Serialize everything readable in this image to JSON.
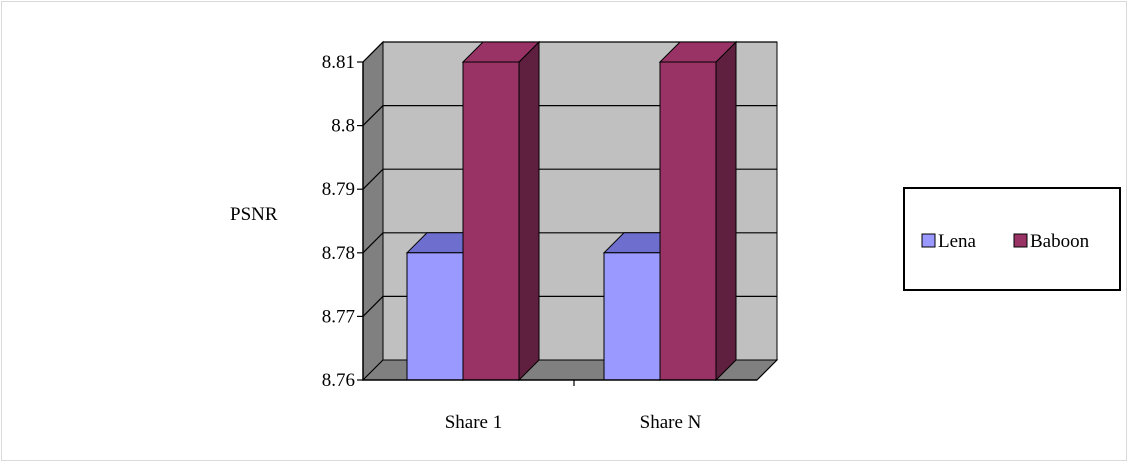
{
  "chart_data": {
    "type": "bar",
    "categories": [
      "Share 1",
      "Share N"
    ],
    "series": [
      {
        "name": "Lena",
        "values": [
          8.78,
          8.78
        ],
        "color": "#9999ff",
        "top_color": "#6e6ecf"
      },
      {
        "name": "Baboon",
        "values": [
          8.81,
          8.81
        ],
        "color": "#993366",
        "side_color": "#5f1f3f"
      }
    ],
    "title": "",
    "xlabel": "",
    "ylabel": "PSNR",
    "ylim": [
      8.76,
      8.81
    ],
    "yticks": [
      "8.76",
      "8.77",
      "8.78",
      "8.79",
      "8.8",
      "8.81"
    ],
    "legend_position": "right",
    "grid": true,
    "style_3d": true,
    "wall_color": "#c0c0c0",
    "side_wall_color": "#808080"
  }
}
